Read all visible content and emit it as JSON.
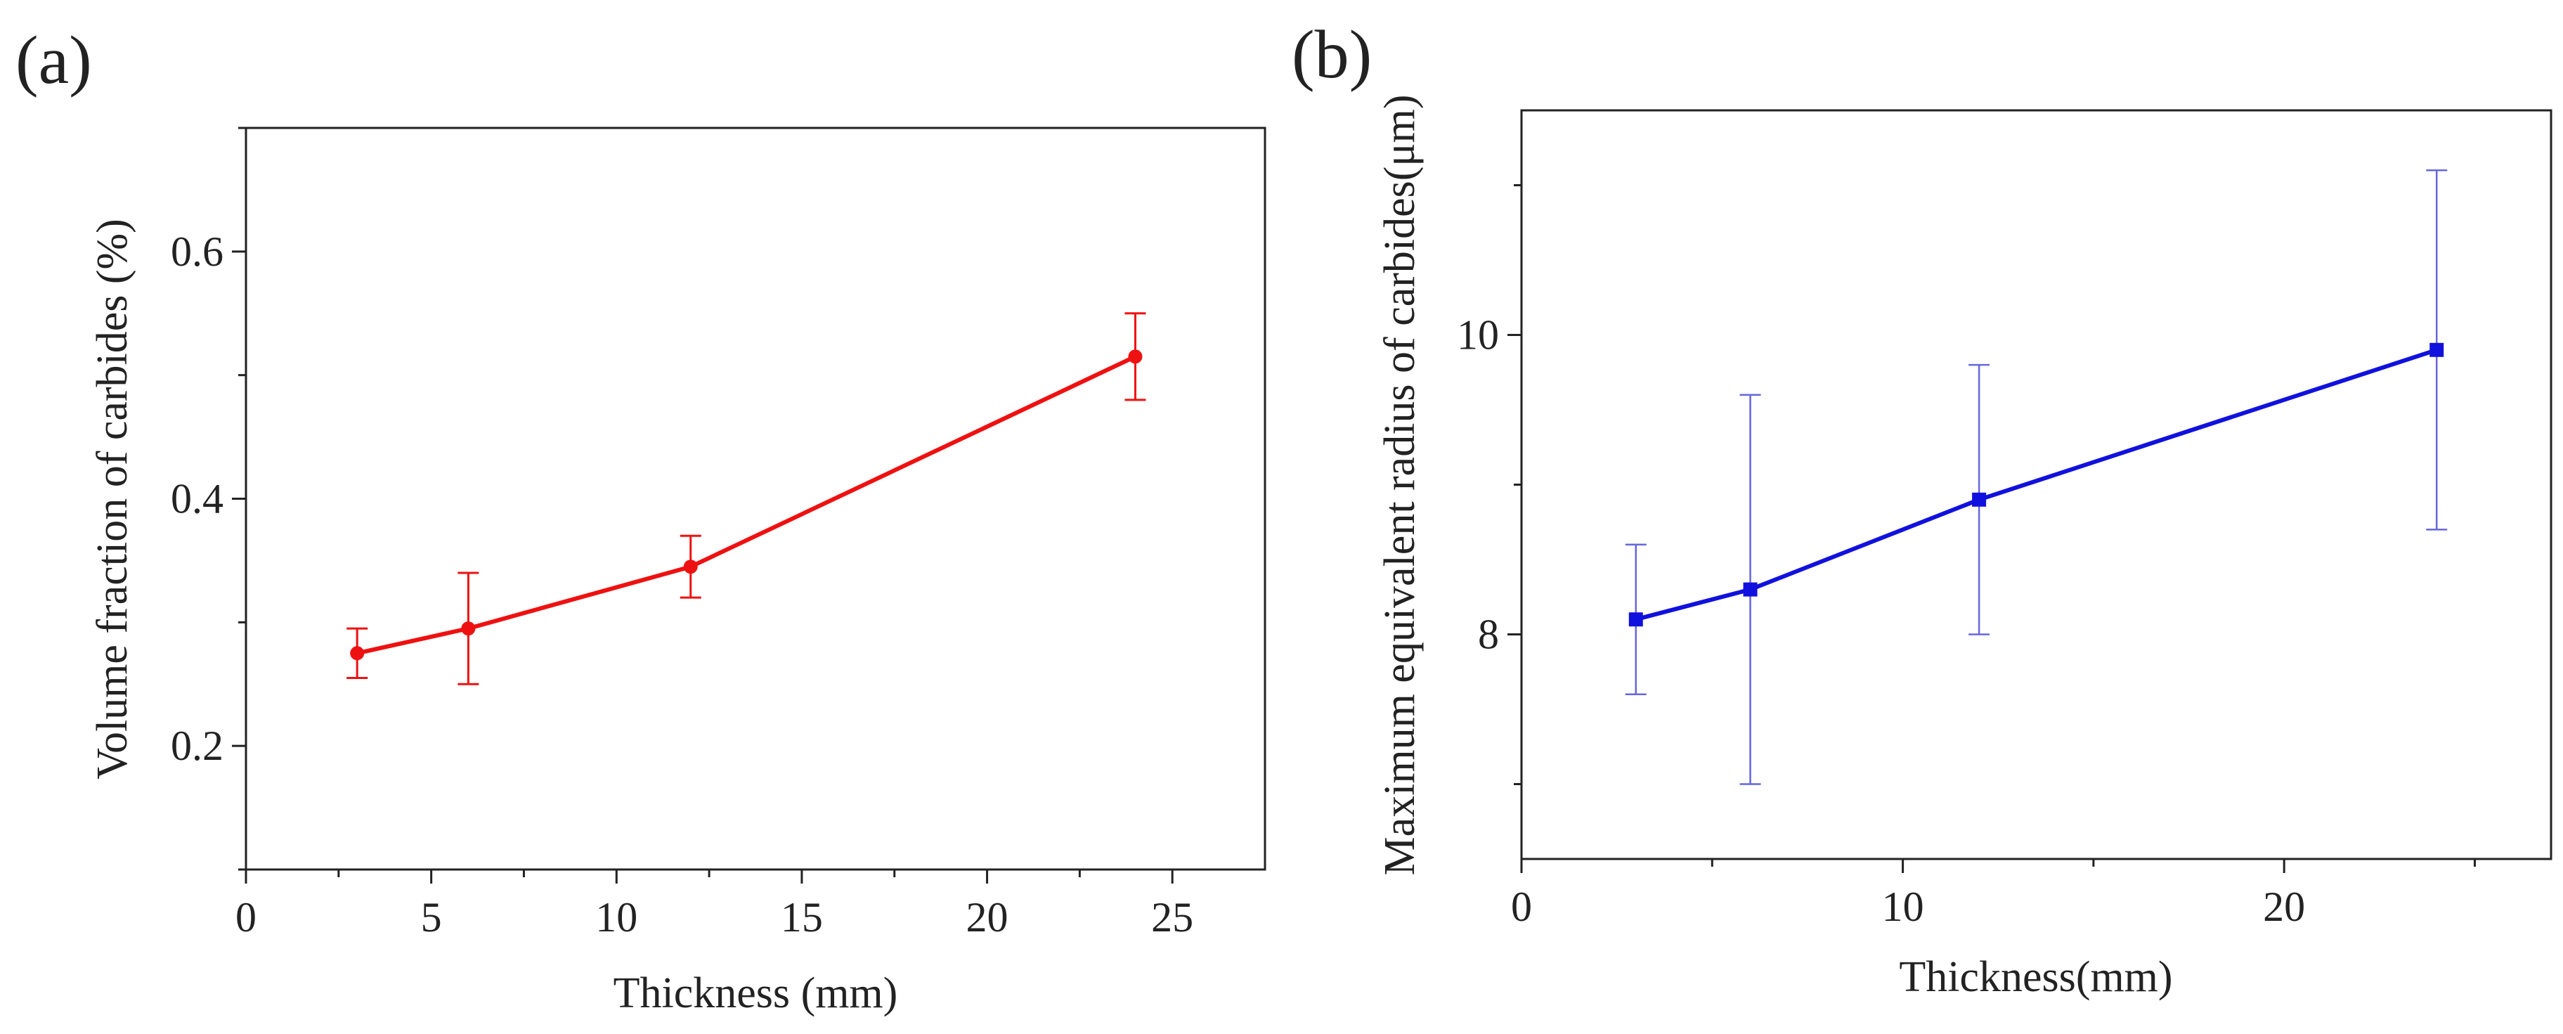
{
  "chart_data": [
    {
      "panel_label": "(a)",
      "type": "line",
      "xlabel": "Thickness (mm)",
      "ylabel": "Volume fraction of carbides (%)",
      "xlim": [
        0,
        27.5
      ],
      "ylim": [
        0.1,
        0.7
      ],
      "xticks": [
        0,
        5,
        10,
        15,
        20,
        25
      ],
      "xtick_labels": [
        "0",
        "5",
        "10",
        "15",
        "20",
        "25"
      ],
      "xminor": [
        2.5,
        7.5,
        12.5,
        17.5,
        22.5
      ],
      "yticks": [
        0.2,
        0.4,
        0.6
      ],
      "ytick_labels": [
        "0.2",
        "0.4",
        "0.6"
      ],
      "yminor": [
        0.1,
        0.3,
        0.5,
        0.7
      ],
      "series": [
        {
          "name": "Volume fraction",
          "color": "#ee1111",
          "marker": "circle",
          "x": [
            3,
            6,
            12,
            24
          ],
          "y": [
            0.275,
            0.295,
            0.345,
            0.515
          ],
          "err_low": [
            0.255,
            0.25,
            0.32,
            0.48
          ],
          "err_high": [
            0.295,
            0.34,
            0.37,
            0.55
          ]
        }
      ]
    },
    {
      "panel_label": "(b)",
      "type": "line",
      "xlabel": "Thickness(mm)",
      "ylabel": "Maximum equivalent radius of carbides(μm)",
      "xlim": [
        0,
        27
      ],
      "ylim": [
        6.5,
        11.5
      ],
      "xticks": [
        0,
        10,
        20
      ],
      "xtick_labels": [
        "0",
        "10",
        "20"
      ],
      "xminor": [
        5,
        15,
        25
      ],
      "yticks": [
        8,
        10
      ],
      "ytick_labels": [
        "8",
        "10"
      ],
      "yminor": [
        7,
        9,
        11
      ],
      "series": [
        {
          "name": "Maximum equivalent radius",
          "color": "#1111dd",
          "marker": "square",
          "x": [
            3,
            6,
            12,
            24
          ],
          "y": [
            8.1,
            8.3,
            8.9,
            9.9
          ],
          "err_low": [
            7.6,
            7.0,
            8.0,
            8.7
          ],
          "err_high": [
            8.6,
            9.6,
            9.8,
            11.1
          ]
        }
      ]
    }
  ]
}
